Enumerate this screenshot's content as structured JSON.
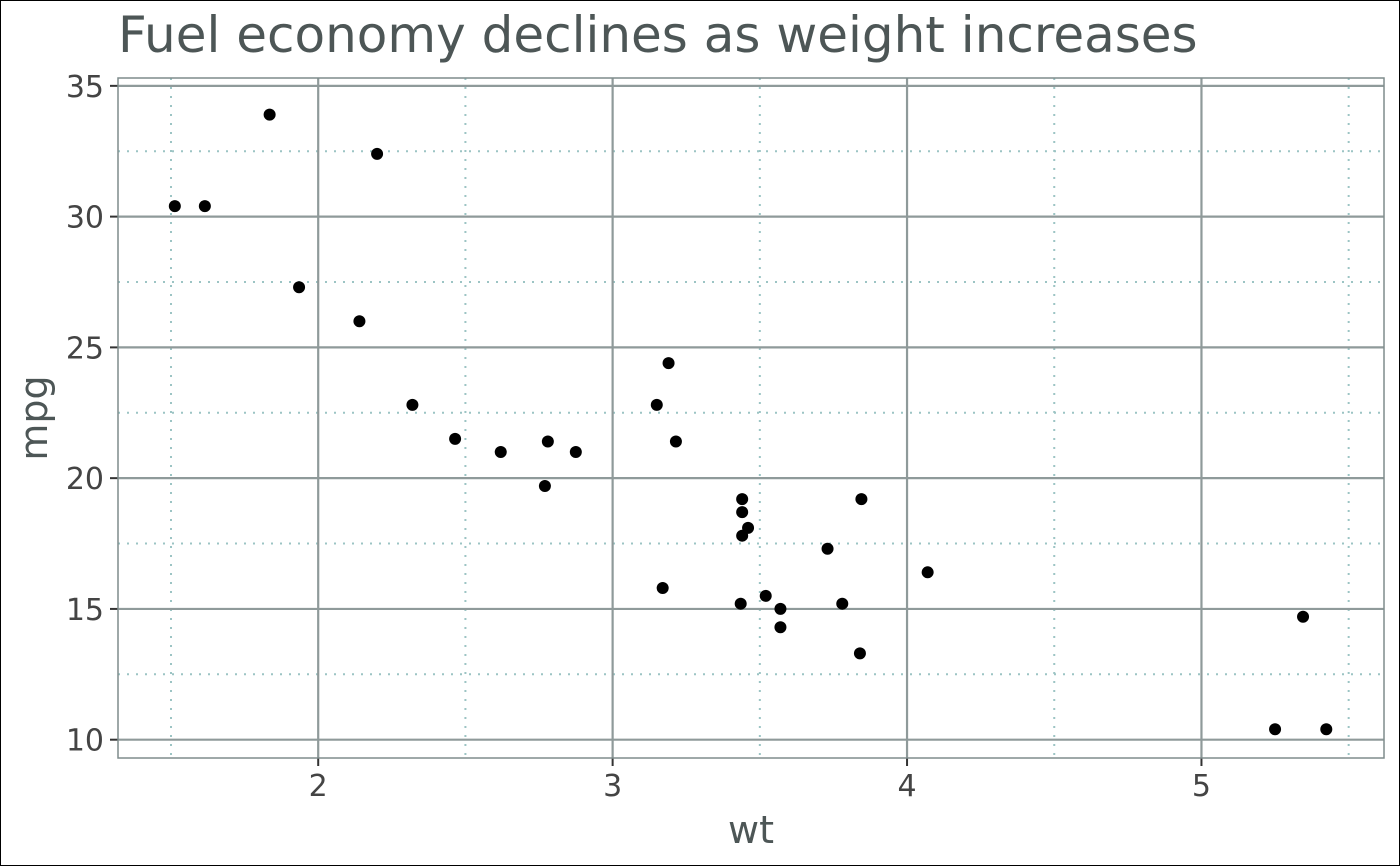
{
  "chart_data": {
    "type": "scatter",
    "title": "Fuel economy declines as weight increases",
    "xlabel": "wt",
    "ylabel": "mpg",
    "xlim": [
      1.32,
      5.62
    ],
    "ylim": [
      9.3,
      35.3
    ],
    "x_ticks": [
      2,
      3,
      4,
      5
    ],
    "y_ticks": [
      10,
      15,
      20,
      25,
      30,
      35
    ],
    "x_minor": [
      1.5,
      2.5,
      3.5,
      4.5,
      5.5
    ],
    "y_minor": [
      12.5,
      17.5,
      22.5,
      27.5,
      32.5
    ],
    "grid": true,
    "legend": "none",
    "colors": {
      "point": "#000000",
      "major_grid": "#8f9a9a",
      "minor_grid": "#9cc4c4",
      "panel_border": "#7f8c8c",
      "title": "#4d5656"
    },
    "points": [
      {
        "x": 2.62,
        "y": 21.0
      },
      {
        "x": 2.875,
        "y": 21.0
      },
      {
        "x": 2.32,
        "y": 22.8
      },
      {
        "x": 3.215,
        "y": 21.4
      },
      {
        "x": 3.44,
        "y": 18.7
      },
      {
        "x": 3.46,
        "y": 18.1
      },
      {
        "x": 3.57,
        "y": 14.3
      },
      {
        "x": 3.19,
        "y": 24.4
      },
      {
        "x": 3.15,
        "y": 22.8
      },
      {
        "x": 3.44,
        "y": 19.2
      },
      {
        "x": 3.44,
        "y": 17.8
      },
      {
        "x": 4.07,
        "y": 16.4
      },
      {
        "x": 3.73,
        "y": 17.3
      },
      {
        "x": 3.78,
        "y": 15.2
      },
      {
        "x": 5.25,
        "y": 10.4
      },
      {
        "x": 5.424,
        "y": 10.4
      },
      {
        "x": 5.345,
        "y": 14.7
      },
      {
        "x": 2.2,
        "y": 32.4
      },
      {
        "x": 1.615,
        "y": 30.4
      },
      {
        "x": 1.835,
        "y": 33.9
      },
      {
        "x": 2.465,
        "y": 21.5
      },
      {
        "x": 3.52,
        "y": 15.5
      },
      {
        "x": 3.435,
        "y": 15.2
      },
      {
        "x": 3.84,
        "y": 13.3
      },
      {
        "x": 3.845,
        "y": 19.2
      },
      {
        "x": 1.935,
        "y": 27.3
      },
      {
        "x": 2.14,
        "y": 26.0
      },
      {
        "x": 1.513,
        "y": 30.4
      },
      {
        "x": 3.17,
        "y": 15.8
      },
      {
        "x": 2.77,
        "y": 19.7
      },
      {
        "x": 3.57,
        "y": 15.0
      },
      {
        "x": 2.78,
        "y": 21.4
      }
    ]
  }
}
